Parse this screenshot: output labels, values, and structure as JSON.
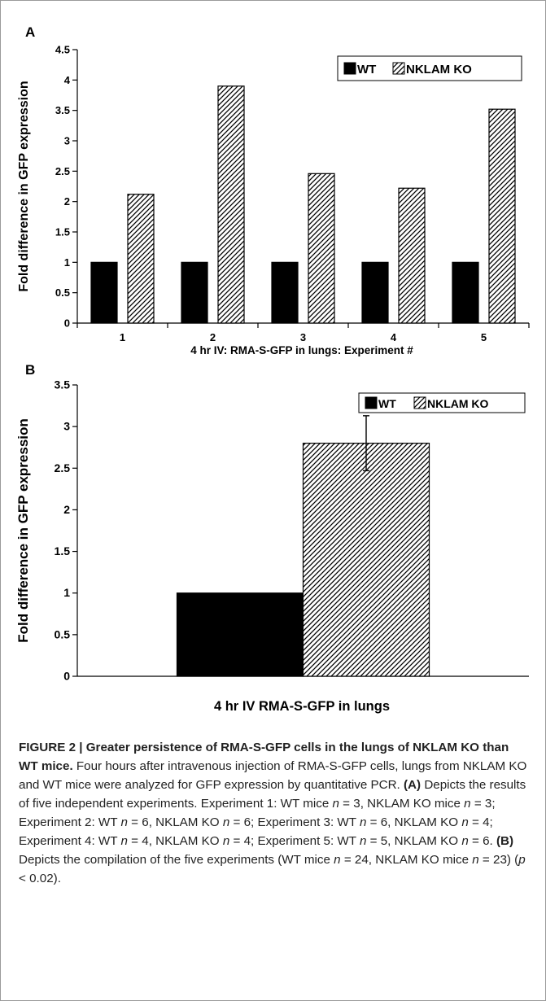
{
  "chart_data": [
    {
      "panel": "A",
      "type": "bar",
      "categories": [
        "1",
        "2",
        "3",
        "4",
        "5"
      ],
      "series": [
        {
          "name": "WT",
          "values": [
            1,
            1,
            1,
            1,
            1
          ],
          "color": "#000000"
        },
        {
          "name": "NKLAM KO",
          "values": [
            2.12,
            3.9,
            2.46,
            2.22,
            3.52
          ],
          "pattern": "diagonal-hatch"
        }
      ],
      "xlabel": "4 hr IV: RMA-S-GFP in lungs: Experiment #",
      "ylabel": "Fold difference in GFP expression",
      "ylim": [
        0,
        4.5
      ],
      "yticks": [
        "0",
        "0.5",
        "1",
        "1.5",
        "2",
        "2.5",
        "3",
        "3.5",
        "4",
        "4.5"
      ],
      "legend_position": "top-right",
      "grid": false
    },
    {
      "panel": "B",
      "type": "bar",
      "categories": [
        ""
      ],
      "series": [
        {
          "name": "WT",
          "values": [
            1
          ],
          "color": "#000000"
        },
        {
          "name": "NKLAM KO",
          "values": [
            2.8
          ],
          "error": [
            0.33
          ],
          "pattern": "diagonal-hatch"
        }
      ],
      "xlabel": "4 hr IV RMA-S-GFP in lungs",
      "ylabel": "Fold difference in GFP expression",
      "ylim": [
        0,
        3.5
      ],
      "yticks": [
        "0",
        "0.5",
        "1",
        "1.5",
        "2",
        "2.5",
        "3",
        "3.5"
      ],
      "legend_position": "top-right",
      "grid": false
    }
  ],
  "caption": {
    "label": "FIGURE 2 | ",
    "title": "Greater persistence of RMA-S-GFP cells in the lungs of NKLAM KO than WT mice.",
    "s1": " Four hours after intravenous injection of RMA-S-GFP cells, lungs from NKLAM KO and WT mice were analyzed for GFP expression by quantitative PCR. ",
    "refA": "(A)",
    "s2": " Depicts the results of five independent experiments. Experiment 1: WT mice ",
    "e1": " = 3, NKLAM KO mice ",
    "e2": " = 3; Experiment 2: WT ",
    "e3": " = 6, NKLAM KO ",
    "e4": " = 6; Experiment 3: WT ",
    "e5": " = 6, NKLAM KO ",
    "e6": " = 4; Experiment 4: WT ",
    "e7": " = 4, NKLAM KO ",
    "e8": " = 4; Experiment 5: WT ",
    "e9": " = 5, NKLAM KO ",
    "e10": " = 6. ",
    "refB": "(B)",
    "s3": " Depicts the compilation of the five experiments (WT mice ",
    "e11": " = 24, NKLAM KO mice ",
    "e12": " = 23) (",
    "p": "p",
    "e13": " < 0.02).",
    "n": "n"
  }
}
